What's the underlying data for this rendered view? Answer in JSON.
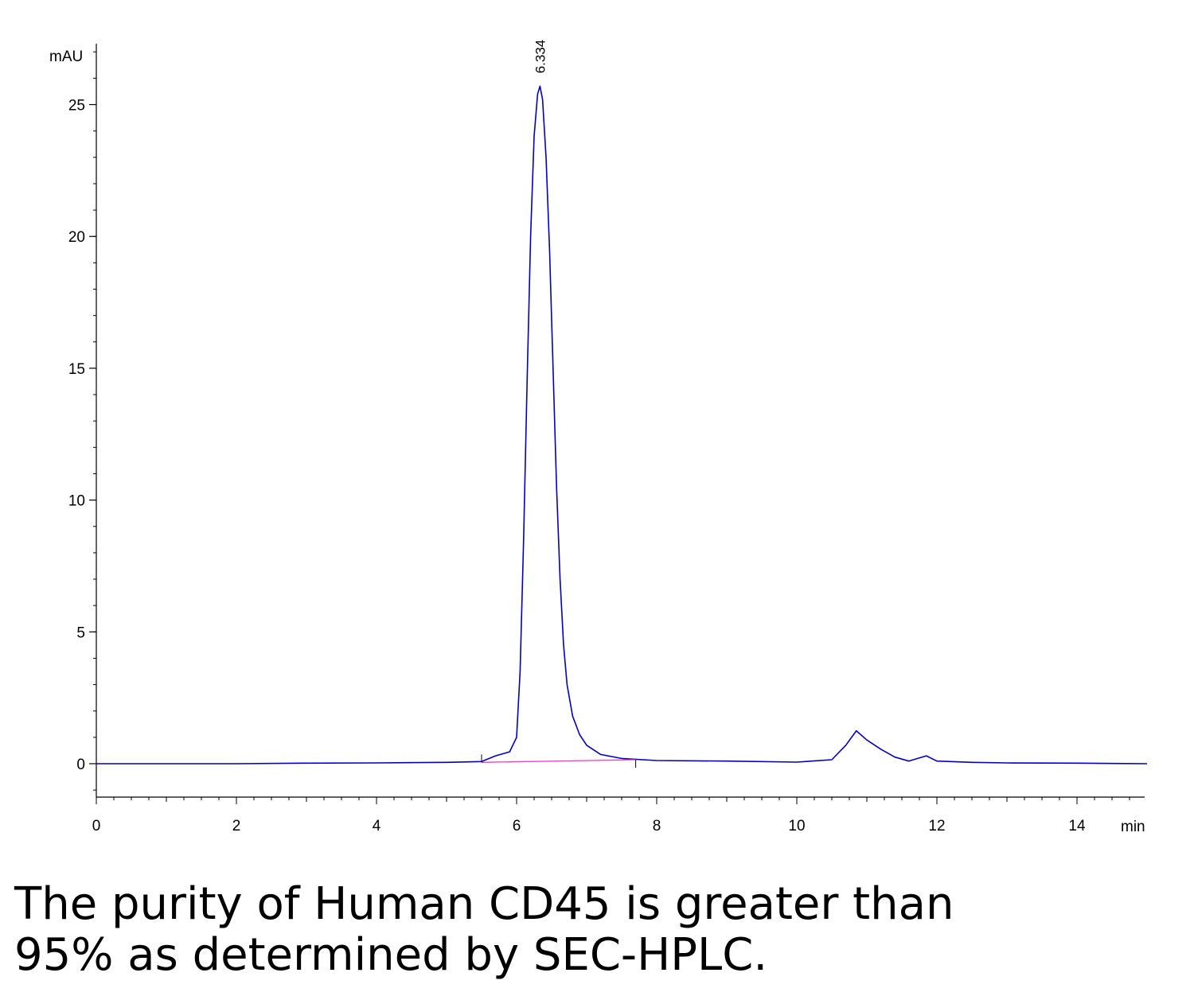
{
  "chart_data": {
    "type": "line",
    "ylabel": "mAU",
    "xlabel": "min",
    "xlim": [
      0,
      15
    ],
    "ylim": [
      -1.3,
      27
    ],
    "x_ticks": [
      0,
      2,
      4,
      6,
      8,
      10,
      12,
      14
    ],
    "y_ticks": [
      0,
      5,
      10,
      15,
      20,
      25
    ],
    "grid": false,
    "series": [
      {
        "color": "#0000cc",
        "x": [
          0,
          1,
          2,
          3,
          4,
          5,
          5.5,
          5.7,
          5.9,
          6.0,
          6.05,
          6.1,
          6.15,
          6.2,
          6.25,
          6.3,
          6.334,
          6.37,
          6.42,
          6.47,
          6.52,
          6.57,
          6.62,
          6.67,
          6.72,
          6.8,
          6.9,
          7.0,
          7.2,
          7.5,
          8.0,
          9.0,
          10.0,
          10.5,
          10.7,
          10.85,
          11.0,
          11.2,
          11.4,
          11.6,
          11.85,
          12.0,
          12.5,
          13.0,
          14.0,
          15.0
        ],
        "y": [
          0.0,
          0.0,
          0.0,
          0.02,
          0.03,
          0.05,
          0.08,
          0.3,
          0.45,
          1.0,
          3.5,
          8.5,
          14.5,
          20.0,
          23.8,
          25.4,
          25.7,
          25.2,
          23.0,
          19.5,
          15.0,
          10.5,
          7.0,
          4.5,
          3.0,
          1.8,
          1.1,
          0.7,
          0.35,
          0.2,
          0.12,
          0.1,
          0.06,
          0.15,
          0.7,
          1.25,
          0.9,
          0.55,
          0.25,
          0.1,
          0.3,
          0.1,
          0.05,
          0.03,
          0.02,
          0.0
        ]
      },
      {
        "color": "#ff33cc",
        "x": [
          5.5,
          7.7
        ],
        "y": [
          0.05,
          0.15
        ]
      }
    ],
    "annotations": [
      {
        "text": "6.334",
        "x": 6.334,
        "y": 25.7
      }
    ]
  },
  "caption": {
    "line1": "The purity of Human CD45 is greater than",
    "line2": "95% as determined by SEC-HPLC."
  }
}
